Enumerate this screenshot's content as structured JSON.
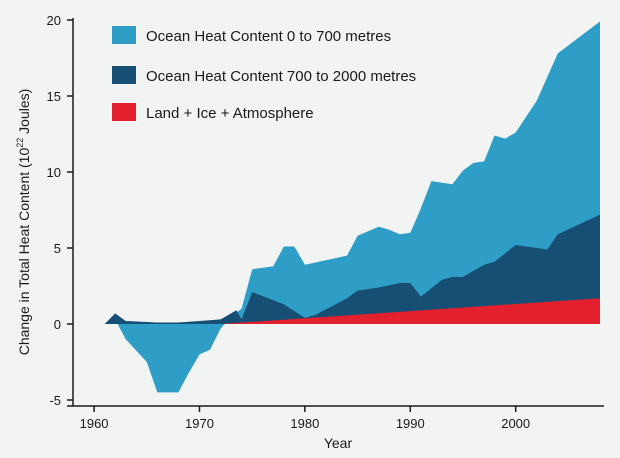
{
  "chart_data": {
    "type": "area",
    "stacked": true,
    "xlabel": "Year",
    "ylabel_main": "Change in Total Heat Content (10",
    "ylabel_sup": "22",
    "ylabel_tail": " Joules)",
    "xlim": [
      1958,
      2008
    ],
    "ylim": [
      -5,
      20
    ],
    "xticks": [
      1960,
      1970,
      1980,
      1990,
      2000
    ],
    "yticks": [
      -5,
      0,
      5,
      10,
      15,
      20
    ],
    "grid": false,
    "legend_position": "top-left",
    "series": [
      {
        "name": "Land + Ice + Atmosphere",
        "color": "#e3202e",
        "x": [
          1972,
          2008
        ],
        "y": [
          0.0,
          1.7
        ]
      },
      {
        "name": "Ocean Heat Content 700 to 2000 metres",
        "color": "#174f74",
        "x": [
          1961,
          1962,
          1963,
          1966,
          1968,
          1970,
          1972,
          1973.5,
          1974,
          1975,
          1978,
          1980,
          1981,
          1984,
          1985,
          1987,
          1989,
          1990,
          1991,
          1993,
          1994,
          1995,
          1997,
          1998,
          2000,
          2003,
          2004,
          2008
        ],
        "y": [
          0.0,
          0.7,
          0.2,
          0.1,
          0.1,
          0.2,
          0.3,
          0.9,
          0.3,
          2.1,
          1.3,
          0.4,
          0.6,
          1.7,
          2.2,
          2.4,
          2.7,
          2.7,
          1.8,
          2.9,
          3.1,
          3.1,
          3.9,
          4.1,
          5.2,
          4.9,
          5.9,
          7.2
        ]
      },
      {
        "name": "Ocean Heat Content 0 to 700 metres",
        "color": "#2e9ec6",
        "x": [
          1961,
          1962,
          1963,
          1965,
          1966,
          1967,
          1968,
          1969,
          1970,
          1971,
          1972,
          1973,
          1974,
          1975,
          1977,
          1978,
          1979,
          1980,
          1984,
          1985,
          1987,
          1988,
          1989,
          1990,
          1991,
          1992,
          1994,
          1995,
          1996,
          1997,
          1998,
          1999,
          2000,
          2002,
          2004,
          2008
        ],
        "y": [
          0.0,
          0.3,
          -1.0,
          -2.5,
          -4.5,
          -4.5,
          -4.5,
          -3.2,
          -2.0,
          -1.7,
          -0.3,
          0.5,
          1.0,
          3.6,
          3.8,
          5.1,
          5.1,
          3.9,
          4.5,
          5.8,
          6.4,
          6.2,
          5.9,
          6.0,
          7.6,
          9.4,
          9.2,
          10.1,
          10.6,
          10.7,
          12.4,
          12.2,
          12.6,
          14.7,
          17.8,
          19.9
        ]
      }
    ]
  },
  "legend": [
    {
      "label": "Ocean Heat Content 0 to 700 metres",
      "color": "#2e9ec6"
    },
    {
      "label": "Ocean Heat Content 700 to 2000 metres",
      "color": "#174f74"
    },
    {
      "label": "Land + Ice + Atmosphere",
      "color": "#e3202e"
    }
  ]
}
